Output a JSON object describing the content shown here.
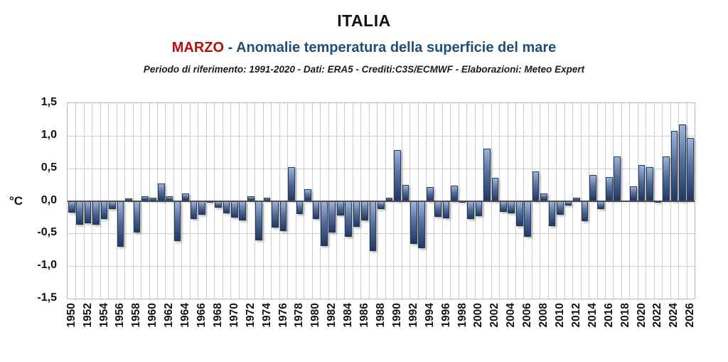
{
  "header": {
    "title": "ITALIA",
    "subtitle_month": "MARZO",
    "subtitle_rest": " - Anomalie temperatura della superficie del mare",
    "source_line": "Periodo di riferimento: 1991-2020 - Dati: ERA5 - Crediti:C3S/ECMWF - Elaborazioni: Meteo Expert"
  },
  "colors": {
    "month_accent": "#b40f0f",
    "subtitle_blue": "#1f4e79",
    "bar_gradient_top": "#9db4d9",
    "bar_gradient_bottom": "#1f3864",
    "bar_outline": "#2b3a55",
    "gridline": "#cccccc",
    "zero_axis": "#4d4d4d"
  },
  "chart_data": {
    "type": "bar",
    "title": "ITALIA - MARZO - Anomalie temperatura della superficie del mare",
    "ylabel": "°C",
    "xlabel": "",
    "ylim": [
      -1.5,
      1.5
    ],
    "grid": true,
    "ytick_labels": [
      "1,5",
      "1,0",
      "0,5",
      "0,0",
      "-0,5",
      "-1,0",
      "-1,5"
    ],
    "ytick_values": [
      1.5,
      1.0,
      0.5,
      0.0,
      -0.5,
      -1.0,
      -1.5
    ],
    "xtick_step": 2,
    "years": [
      1950,
      1951,
      1952,
      1953,
      1954,
      1955,
      1956,
      1957,
      1958,
      1959,
      1960,
      1961,
      1962,
      1963,
      1964,
      1965,
      1966,
      1967,
      1968,
      1969,
      1970,
      1971,
      1972,
      1973,
      1974,
      1975,
      1976,
      1977,
      1978,
      1979,
      1980,
      1981,
      1982,
      1983,
      1984,
      1985,
      1986,
      1987,
      1988,
      1989,
      1990,
      1991,
      1992,
      1993,
      1994,
      1995,
      1996,
      1997,
      1998,
      1999,
      2000,
      2001,
      2002,
      2003,
      2004,
      2005,
      2006,
      2007,
      2008,
      2009,
      2010,
      2011,
      2012,
      2013,
      2014,
      2015,
      2016,
      2017,
      2018,
      2019,
      2020,
      2021,
      2022,
      2023,
      2024,
      2025,
      2026
    ],
    "values": [
      -0.18,
      -0.37,
      -0.34,
      -0.37,
      -0.28,
      -0.13,
      -0.7,
      0.04,
      -0.48,
      0.07,
      0.05,
      0.27,
      0.07,
      -0.62,
      0.11,
      -0.28,
      -0.21,
      -0.03,
      -0.1,
      -0.19,
      -0.26,
      -0.3,
      0.07,
      -0.61,
      0.05,
      -0.41,
      -0.46,
      0.52,
      -0.2,
      0.18,
      -0.28,
      -0.69,
      -0.49,
      -0.22,
      -0.55,
      -0.4,
      -0.3,
      -0.77,
      -0.12,
      0.05,
      0.78,
      0.25,
      -0.66,
      -0.72,
      0.21,
      -0.24,
      -0.27,
      0.24,
      -0.03,
      -0.28,
      -0.23,
      0.8,
      0.36,
      -0.17,
      -0.19,
      -0.39,
      -0.55,
      0.45,
      0.11,
      -0.39,
      -0.21,
      -0.07,
      0.05,
      -0.31,
      0.4,
      -0.13,
      0.37,
      0.68,
      0.0,
      0.22,
      0.55,
      0.52,
      -0.03,
      0.68,
      1.08,
      1.17,
      0.97
    ]
  }
}
